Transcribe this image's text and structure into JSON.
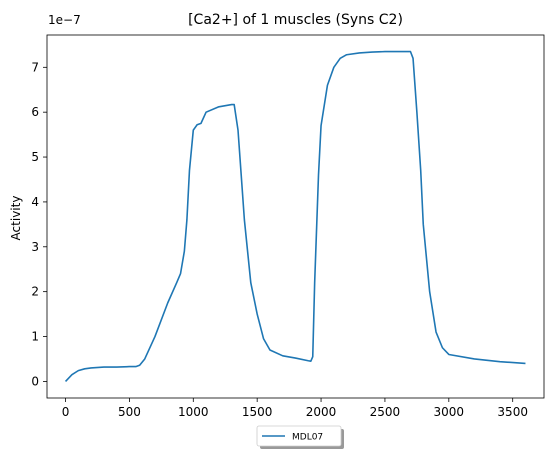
{
  "chart_data": {
    "type": "line",
    "title": "[Ca2+] of 1 muscles (Syns C2)",
    "xlabel": "",
    "ylabel": "Activity",
    "offset_label": "1e−7",
    "xlim": [
      -145,
      3745
    ],
    "ylim": [
      -0.37,
      7.72
    ],
    "scale_exponent": -7,
    "xticks": [
      0,
      500,
      1000,
      1500,
      2000,
      2500,
      3000,
      3500
    ],
    "xtick_labels": [
      "0",
      "500",
      "1000",
      "1500",
      "2000",
      "2500",
      "3000",
      "3500"
    ],
    "yticks": [
      0,
      1,
      2,
      3,
      4,
      5,
      6,
      7
    ],
    "ytick_labels": [
      "0",
      "1",
      "2",
      "3",
      "4",
      "5",
      "6",
      "7"
    ],
    "grid": false,
    "legend": {
      "placement": "bottom-center-below"
    },
    "series": [
      {
        "name": "MDL07",
        "color": "#1f77b4",
        "x": [
          0,
          50,
          100,
          150,
          200,
          300,
          400,
          500,
          550,
          580,
          620,
          700,
          800,
          870,
          900,
          930,
          950,
          970,
          1000,
          1030,
          1060,
          1100,
          1200,
          1300,
          1320,
          1350,
          1380,
          1400,
          1450,
          1500,
          1550,
          1600,
          1700,
          1800,
          1900,
          1920,
          1935,
          1950,
          1980,
          2000,
          2050,
          2100,
          2150,
          2200,
          2300,
          2400,
          2500,
          2600,
          2700,
          2720,
          2750,
          2780,
          2800,
          2850,
          2900,
          2950,
          3000,
          3200,
          3400,
          3600
        ],
        "y": [
          0.0,
          0.15,
          0.24,
          0.28,
          0.3,
          0.32,
          0.32,
          0.33,
          0.33,
          0.36,
          0.5,
          1.0,
          1.75,
          2.2,
          2.4,
          2.9,
          3.6,
          4.7,
          5.6,
          5.72,
          5.75,
          6.0,
          6.12,
          6.17,
          6.17,
          5.6,
          4.4,
          3.6,
          2.2,
          1.5,
          0.95,
          0.7,
          0.57,
          0.52,
          0.46,
          0.45,
          0.55,
          2.2,
          4.6,
          5.7,
          6.6,
          7.0,
          7.2,
          7.28,
          7.32,
          7.34,
          7.35,
          7.35,
          7.35,
          7.2,
          6.0,
          4.7,
          3.5,
          2.0,
          1.1,
          0.75,
          0.6,
          0.5,
          0.44,
          0.4
        ]
      }
    ]
  }
}
